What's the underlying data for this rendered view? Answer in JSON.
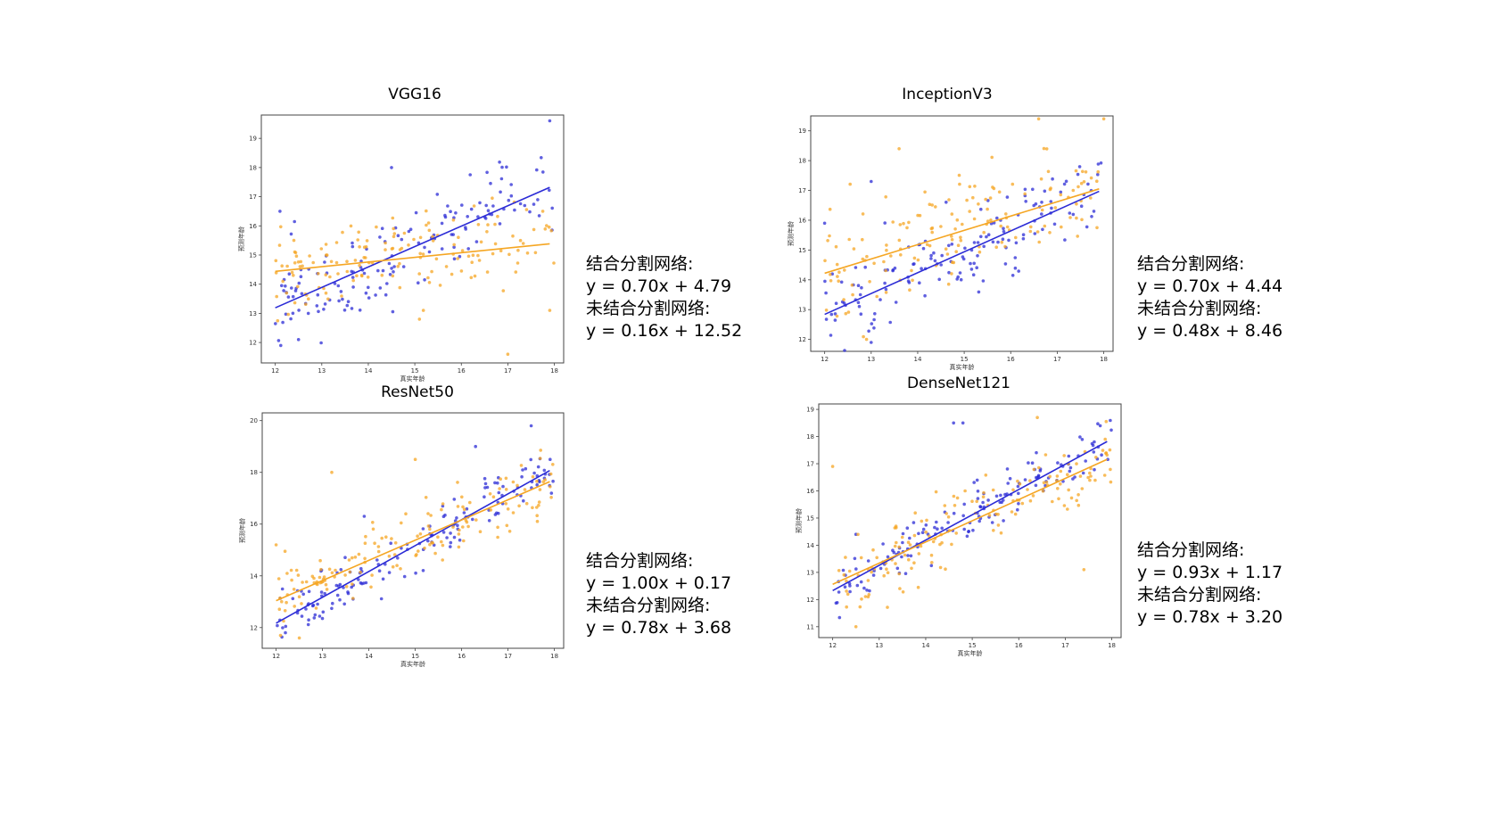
{
  "colors": {
    "with_seg": "#2b2bd6",
    "without_seg": "#f5a623"
  },
  "panels": [
    {
      "title": "VGG16",
      "with_label": "结合分割网络:",
      "with_eq": "y = 0.70x + 4.79",
      "without_label": "未结合分割网络:",
      "without_eq": " y = 0.16x + 12.52"
    },
    {
      "title": "InceptionV3",
      "with_label": "结合分割网络:",
      "with_eq": "y = 0.70x + 4.44",
      "without_label": "未结合分割网络:",
      "without_eq": "y = 0.48x + 8.46"
    },
    {
      "title": "ResNet50",
      "with_label": "结合分割网络:",
      "with_eq": "y = 1.00x + 0.17",
      "without_label": "未结合分割网络:",
      "without_eq": "y = 0.78x + 3.68"
    },
    {
      "title": "DenseNet121",
      "with_label": "结合分割网络:",
      "with_eq": "y = 0.93x + 1.17",
      "without_label": "未结合分割网络:",
      "without_eq": "y = 0.78x + 3.20"
    }
  ],
  "chart_data": [
    {
      "type": "scatter",
      "title": "VGG16",
      "xlabel": "真实年龄",
      "ylabel": "预测年龄",
      "xlim": [
        11.7,
        18.2
      ],
      "ylim": [
        11.3,
        19.8
      ],
      "xticks": [
        12,
        13,
        14,
        15,
        16,
        17,
        18
      ],
      "yticks": [
        12,
        13,
        14,
        15,
        16,
        17,
        18,
        19
      ],
      "series": [
        {
          "color": "#2b2bd6",
          "fit": {
            "slope": 0.7,
            "intercept": 4.79
          },
          "noise": 0.75,
          "n": 150,
          "seed": 11,
          "points": [
            [
              17.9,
              19.6
            ],
            [
              14.5,
              18.0
            ],
            [
              12.1,
              16.5
            ],
            [
              12.5,
              12.1
            ]
          ]
        },
        {
          "color": "#f5a623",
          "fit": {
            "slope": 0.16,
            "intercept": 12.52
          },
          "noise": 0.8,
          "n": 150,
          "seed": 12,
          "points": [
            [
              17.0,
              11.6
            ],
            [
              17.9,
              13.1
            ],
            [
              15.1,
              12.8
            ],
            [
              12.4,
              15.5
            ]
          ]
        }
      ]
    },
    {
      "type": "scatter",
      "title": "InceptionV3",
      "xlabel": "真实年龄",
      "ylabel": "预测年龄",
      "xlim": [
        11.7,
        18.2
      ],
      "ylim": [
        11.6,
        19.5
      ],
      "xticks": [
        12,
        13,
        14,
        15,
        16,
        17,
        18
      ],
      "yticks": [
        12,
        13,
        14,
        15,
        16,
        17,
        18,
        19
      ],
      "series": [
        {
          "color": "#2b2bd6",
          "fit": {
            "slope": 0.7,
            "intercept": 4.44
          },
          "noise": 0.75,
          "n": 150,
          "seed": 21,
          "points": [
            [
              12.0,
              15.9
            ],
            [
              13.0,
              17.3
            ],
            [
              13.0,
              11.9
            ]
          ]
        },
        {
          "color": "#f5a623",
          "fit": {
            "slope": 0.48,
            "intercept": 8.46
          },
          "noise": 0.85,
          "n": 150,
          "seed": 22,
          "points": [
            [
              13.6,
              18.4
            ],
            [
              16.6,
              19.4
            ],
            [
              18.0,
              19.4
            ],
            [
              12.9,
              12.0
            ]
          ]
        }
      ]
    },
    {
      "type": "scatter",
      "title": "ResNet50",
      "xlabel": "真实年龄",
      "ylabel": "预测年龄",
      "xlim": [
        11.7,
        18.2
      ],
      "ylim": [
        11.2,
        20.3
      ],
      "xticks": [
        12,
        13,
        14,
        15,
        16,
        17,
        18
      ],
      "yticks": [
        12,
        14,
        16,
        18,
        20
      ],
      "series": [
        {
          "color": "#2b2bd6",
          "fit": {
            "slope": 1.0,
            "intercept": 0.17
          },
          "noise": 0.5,
          "n": 150,
          "seed": 31,
          "points": [
            [
              17.5,
              19.8
            ],
            [
              16.3,
              19.0
            ],
            [
              13.9,
              16.3
            ],
            [
              12.2,
              11.8
            ]
          ]
        },
        {
          "color": "#f5a623",
          "fit": {
            "slope": 0.78,
            "intercept": 3.68
          },
          "noise": 0.75,
          "n": 150,
          "seed": 32,
          "points": [
            [
              13.2,
              18.0
            ],
            [
              15.0,
              18.5
            ],
            [
              12.0,
              15.2
            ],
            [
              12.5,
              11.6
            ]
          ]
        }
      ]
    },
    {
      "type": "scatter",
      "title": "DenseNet121",
      "xlabel": "真实年龄",
      "ylabel": "预测年龄",
      "xlim": [
        11.7,
        18.2
      ],
      "ylim": [
        10.6,
        19.2
      ],
      "xticks": [
        12,
        13,
        14,
        15,
        16,
        17,
        18
      ],
      "yticks": [
        11,
        12,
        13,
        14,
        15,
        16,
        17,
        18,
        19
      ],
      "series": [
        {
          "color": "#2b2bd6",
          "fit": {
            "slope": 0.93,
            "intercept": 1.17
          },
          "noise": 0.45,
          "n": 150,
          "seed": 41,
          "points": [
            [
              14.6,
              18.5
            ],
            [
              14.8,
              18.5
            ],
            [
              12.5,
              14.4
            ]
          ]
        },
        {
          "color": "#f5a623",
          "fit": {
            "slope": 0.78,
            "intercept": 3.2
          },
          "noise": 0.75,
          "n": 150,
          "seed": 42,
          "points": [
            [
              12.0,
              16.9
            ],
            [
              16.4,
              18.7
            ],
            [
              17.4,
              13.1
            ],
            [
              12.5,
              11.0
            ]
          ]
        }
      ]
    }
  ]
}
